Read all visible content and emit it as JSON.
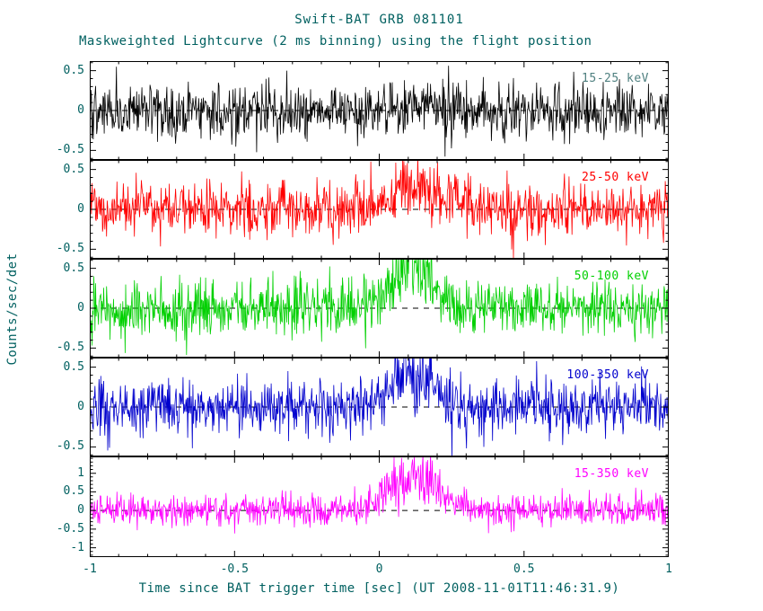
{
  "chart_data": {
    "type": "line",
    "title": "Swift-BAT GRB 081101",
    "subtitle": "Maskweighted Lightcurve (2 ms binning) using the flight position",
    "xlabel": "Time since BAT trigger time [sec] (UT 2008-11-01T11:46:31.9)",
    "ylabel": "Counts/sec/det",
    "bin_ms": 2,
    "text_color": "#006060",
    "axis_color": "#000000",
    "x": {
      "range": [
        -1,
        1
      ],
      "major_ticks": [
        -1,
        -0.5,
        0,
        0.5,
        1
      ],
      "minor_step": 0.1
    },
    "zero_line": {
      "value": 0,
      "style": "dashed",
      "color": "#000000"
    },
    "panels": [
      {
        "band": "15-25 keV",
        "color": "#000000",
        "label_color": "#4f8080",
        "ylim": [
          -0.62,
          0.62
        ],
        "yticks": [
          0.5,
          0,
          -0.5
        ],
        "noise_sigma": 0.17,
        "burst": {
          "t_peak": 0.12,
          "sigma_t": 0.07,
          "peak_amp": 0.06
        }
      },
      {
        "band": "25-50 keV",
        "color": "#ff0000",
        "label_color": "#ff0000",
        "ylim": [
          -0.62,
          0.62
        ],
        "yticks": [
          0.5,
          0,
          -0.5
        ],
        "noise_sigma": 0.17,
        "burst": {
          "t_peak": 0.13,
          "sigma_t": 0.09,
          "peak_amp": 0.3
        }
      },
      {
        "band": "50-100 keV",
        "color": "#00d000",
        "label_color": "#00d000",
        "ylim": [
          -0.62,
          0.62
        ],
        "yticks": [
          0.5,
          0,
          -0.5
        ],
        "noise_sigma": 0.17,
        "burst": {
          "t_peak": 0.11,
          "sigma_t": 0.07,
          "peak_amp": 0.6
        }
      },
      {
        "band": "100-350 keV",
        "color": "#0000cd",
        "label_color": "#0000cd",
        "ylim": [
          -0.62,
          0.62
        ],
        "yticks": [
          0.5,
          0,
          -0.5
        ],
        "noise_sigma": 0.18,
        "burst": {
          "t_peak": 0.12,
          "sigma_t": 0.07,
          "peak_amp": 0.5
        }
      },
      {
        "band": "15-350 keV",
        "color": "#ff00ff",
        "label_color": "#ff00ff",
        "ylim": [
          -1.25,
          1.45
        ],
        "yticks": [
          1,
          0.5,
          0,
          -0.5,
          -1
        ],
        "noise_sigma": 0.22,
        "burst": {
          "t_peak": 0.12,
          "sigma_t": 0.08,
          "peak_amp": 1.05
        }
      }
    ]
  }
}
